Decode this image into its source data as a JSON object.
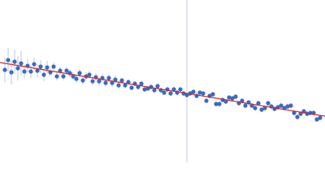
{
  "chart_data": {
    "type": "scatter",
    "xlim": [
      0,
      400
    ],
    "ylim": [
      0,
      200
    ],
    "series": [
      {
        "color": "#3a6bbf",
        "error_color": "#b9c9e6",
        "x": [
          6,
          10,
          14,
          18,
          22,
          26,
          30,
          34,
          38,
          42,
          46,
          50,
          54,
          58,
          62,
          66,
          70,
          74,
          78,
          82,
          86,
          90,
          94,
          98,
          102,
          106,
          110,
          114,
          118,
          122,
          126,
          130,
          134,
          138,
          142,
          146,
          150,
          154,
          158,
          162,
          166,
          170,
          174,
          178,
          182,
          186,
          190,
          194,
          198,
          202,
          206,
          210,
          214,
          218,
          222,
          226,
          230,
          234,
          238,
          242,
          246,
          250,
          254,
          258,
          262,
          266,
          270,
          274,
          278,
          282,
          286,
          290,
          294,
          298,
          302,
          306,
          310,
          314,
          318,
          322,
          326,
          330,
          334,
          338,
          342,
          346,
          350,
          354,
          358,
          362,
          366,
          370,
          374,
          378,
          382,
          386,
          390,
          394
        ],
        "values": [
          114,
          126,
          111,
          124,
          116,
          122,
          112,
          119,
          112,
          121,
          113,
          118,
          108,
          117,
          111,
          118,
          106,
          113,
          106,
          113,
          110,
          106,
          103,
          110,
          101,
          106,
          108,
          100,
          105,
          100,
          104,
          98,
          104,
          98,
          102,
          95,
          101,
          95,
          99,
          92,
          97,
          93,
          97,
          90,
          91,
          93,
          89,
          94,
          89,
          86,
          90,
          85,
          90,
          86,
          90,
          85,
          83,
          85,
          87,
          82,
          86,
          85,
          76,
          82,
          84,
          72,
          72,
          77,
          75,
          80,
          79,
          81,
          73,
          76,
          70,
          74,
          70,
          67,
          73,
          65,
          67,
          73,
          69,
          66,
          68,
          70,
          67,
          69,
          70,
          61,
          56,
          60,
          63,
          60,
          61,
          61,
          53,
          55
        ],
        "errors": [
          15,
          15,
          15,
          15,
          15,
          15,
          8,
          8,
          8,
          8,
          8,
          8,
          8,
          8,
          5,
          5,
          5,
          5,
          5,
          5,
          5,
          5,
          5,
          5,
          5,
          5,
          5,
          5,
          5,
          5,
          5,
          5,
          5,
          5,
          5,
          5,
          3,
          3,
          3,
          3,
          3,
          3,
          3,
          3,
          3,
          3,
          3,
          3,
          3,
          3,
          3,
          3,
          3,
          3,
          3,
          3,
          3,
          3,
          3,
          3,
          3,
          3,
          3,
          3,
          3,
          3,
          3,
          3,
          3,
          3,
          3,
          3,
          3,
          3,
          3,
          3,
          3,
          3,
          3,
          3,
          3,
          3,
          3,
          3,
          3,
          3,
          3,
          3,
          3,
          3,
          3,
          3,
          3,
          3,
          3,
          3,
          3,
          3
        ]
      }
    ],
    "fit": {
      "color": "#d62728",
      "x": [
        0,
        400
      ],
      "values": [
        123,
        57
      ]
    },
    "vlines": [
      230
    ],
    "vline_color": "#c5cde0"
  }
}
